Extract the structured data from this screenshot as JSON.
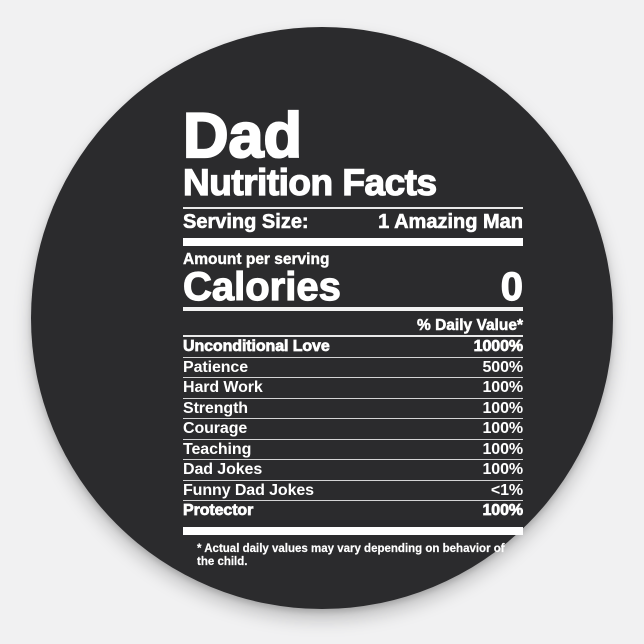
{
  "colors": {
    "page_background": "#f1f1f2",
    "sticker_background": "#2b2b2d",
    "ink": "#ffffff"
  },
  "label": {
    "title_line1": "Dad",
    "title_line2": "Nutrition Facts",
    "serving_label": "Serving Size:",
    "serving_value": "1 Amazing Man",
    "amount_label": "Amount per serving",
    "calories_label": "Calories",
    "calories_value": "0",
    "daily_value_header": "% Daily Value*",
    "rows": [
      {
        "label": "Unconditional Love",
        "value": "1000%"
      },
      {
        "label": "Patience",
        "value": "500%"
      },
      {
        "label": "Hard Work",
        "value": "100%"
      },
      {
        "label": "Strength",
        "value": "100%"
      },
      {
        "label": "Courage",
        "value": "100%"
      },
      {
        "label": "Teaching",
        "value": "100%"
      },
      {
        "label": "Dad Jokes",
        "value": "100%"
      },
      {
        "label": "Funny Dad Jokes",
        "value": "<1%"
      },
      {
        "label": "Protector",
        "value": "100%"
      }
    ],
    "footnote": "* Actual daily values may vary depending on behavior of the child."
  }
}
